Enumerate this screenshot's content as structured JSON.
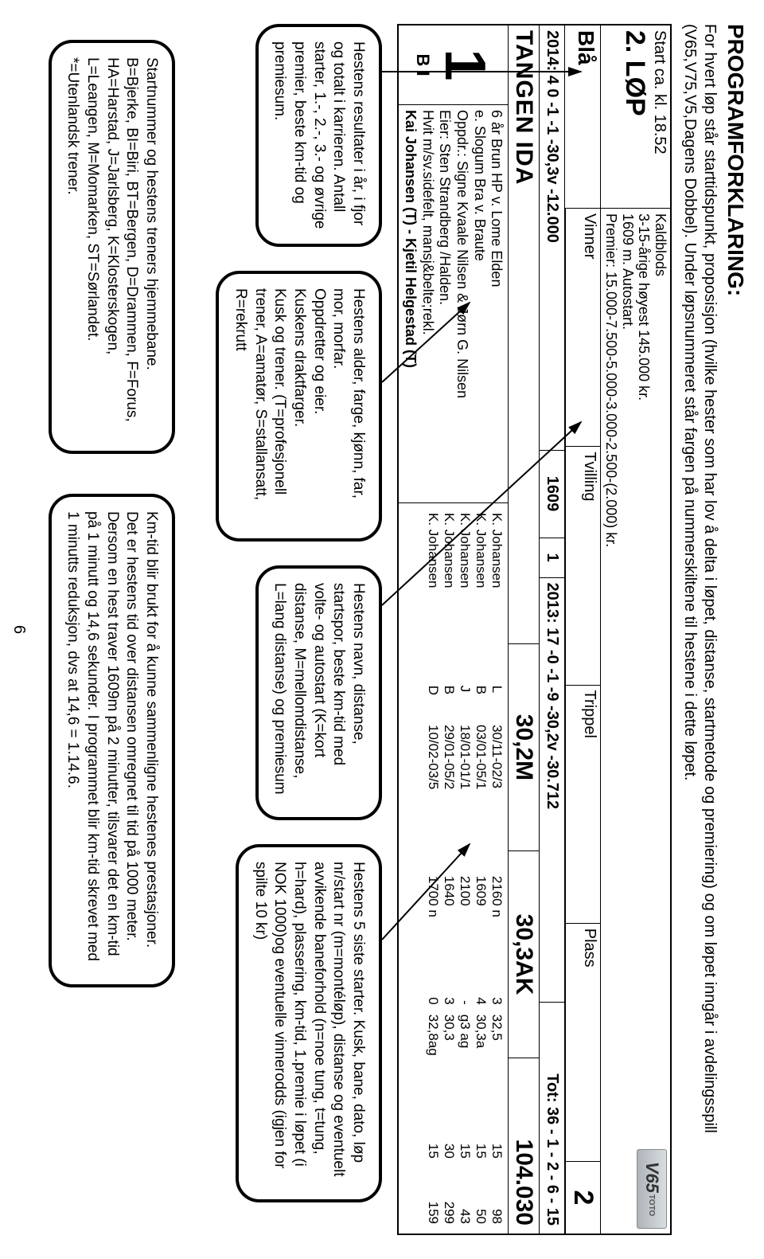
{
  "header": {
    "title": "PROGRAMFORKLARING:",
    "line1": "For hvert løp står starttidspunkt, proposisjon (hvilke hester som har lov å delta i løpet, distanse, startmetode og premiering) og om løpet inngår i avdelingsspill",
    "line2": "(V65,V75,V5,Dagens Dobbel). Under løpsnummeret står fargen på nummerskiltene til hestene i dette løpet."
  },
  "race": {
    "start_time": "Start ca. kl. 18.52",
    "race_label": "2. LØP",
    "prop1": "Kaldblods",
    "prop2": "3-15-årige høyest 145.000 kr.",
    "prop3": "1609 m. Autostart.",
    "prop4": "Premier: 15.000-7.500-5.000-3.000-2.500-(2.000) kr.",
    "color": "Blå",
    "bet1": "Vinner",
    "bet2": "Tvilling",
    "bet3": "Trippel",
    "bet4": "Plass",
    "race_num_badge": "2",
    "v65": "V65",
    "v65_sub": "TOTO"
  },
  "horse": {
    "year_line_left": "2014: 4 0 -1 -1 -30,3v -12.000",
    "year_line_mid": "1609",
    "year_line_spor": "1",
    "year_line_right": "2013: 17 -0 -1 -9 -30,2v -30.712",
    "tot_line": "Tot: 36 - 1 - 2 - 6 - 15",
    "name": "TANGEN IDA",
    "rec1": "30,2M",
    "rec2": "30,3AK",
    "money": "104.030",
    "start_no": "1",
    "track_code": "B I",
    "pedigree": "6 år Brun HP v. Lome Elden",
    "mother": "e. Slogum Bra v. Braute",
    "breeder": "Oppdr.: Signe Kvaale Nilsen & Jørn G. Nilsen",
    "owner": "Eier: Sten Strandberg /Halden.",
    "colors": "Hvit m/sv.sidefelt, mansj&belte;rekl.",
    "driver": "Kai Johansen (T) - Kjetil Helgestad (T)"
  },
  "starts": [
    {
      "kusk": "K. Johansen",
      "trk": "L",
      "date": "30/11-02/3",
      "dist": "2160 n",
      "pl": "3",
      "tid": "32,5",
      "pr": "15",
      "odds": "98"
    },
    {
      "kusk": "K. Johansen",
      "trk": "B",
      "date": "03/01-05/1",
      "dist": "1609",
      "pl": "4",
      "tid": "30,3a",
      "pr": "15",
      "odds": "50"
    },
    {
      "kusk": "K. Johansen",
      "trk": "J",
      "date": "18/01-01/1",
      "dist": "2100",
      "pl": "-",
      "tid": "g3 ag",
      "pr": "15",
      "odds": "43"
    },
    {
      "kusk": "K. Johansen",
      "trk": "B",
      "date": "29/01-05/2",
      "dist": "1640",
      "pl": "3",
      "tid": "30,3",
      "pr": "30",
      "odds": "299"
    },
    {
      "kusk": "K. Johansen",
      "trk": "D",
      "date": "10/02-03/5",
      "dist": "1700 n",
      "pl": "0",
      "tid": "32,8ag",
      "pr": "15",
      "odds": "159"
    }
  ],
  "bubbles": {
    "resultater": "Hestens resultater i år, i fjor og totalt i karrieren. Antall starter, 1.-, 2.-, 3.- og øvrige premier, beste km-tid og premiesum.",
    "alder": "Hestens alder, farge, kjønn, far, mor, morfar.\nOppdretter og eier.\nKuskens draktfarger.\nKusk og trener. (T=profesjonell trener, A=amatør, S=stallansatt, R=rekrutt",
    "navn": "Hestens navn, distanse, startspor, beste km-tid med volte- og autostart (K=kort distanse, M=mellomdistanse, L=lang distanse) og premiesum",
    "siste": "Hestens 5 siste starter. Kusk, bane, dato, løp nr/start nr (m=montéløp), distanse og eventuelt avvikende baneforhold (n=noe tung, t=tung, h=hard), plassering, km-tid, 1.premie i løpet (i NOK 1000)og eventuelle vinnerodds (igjen for spilte 10 kr)",
    "startnr": "Startnummer og hestens treners  hjemmebane.\nB=Bjerke, BI=Biri, BT=Bergen, D=Drammen, F=Forus,\nHA=Harstad, J=Jarlsberg, K=Klosterskogen, L=Leangen, M=Momarken, ST=Sørlandet.\n*=Utenlandsk trener.",
    "kmtid": "Km-tid blir brukt for å kunne sammenligne hestenes prestasjoner. Det er hestens tid over distansen omregnet til tid på 1000 meter. Dersom en hest traver 1609m på 2 minutter, tilsvarer det en km-tid på 1 minutt og 14,6 sekunder. I programmet blir km-tid skrevet med 1 minutts reduksjon, dvs at 14,6 = 1.14.6."
  },
  "page_number": "6",
  "style": {
    "border_color": "#000000",
    "bubble_radius": 30
  }
}
